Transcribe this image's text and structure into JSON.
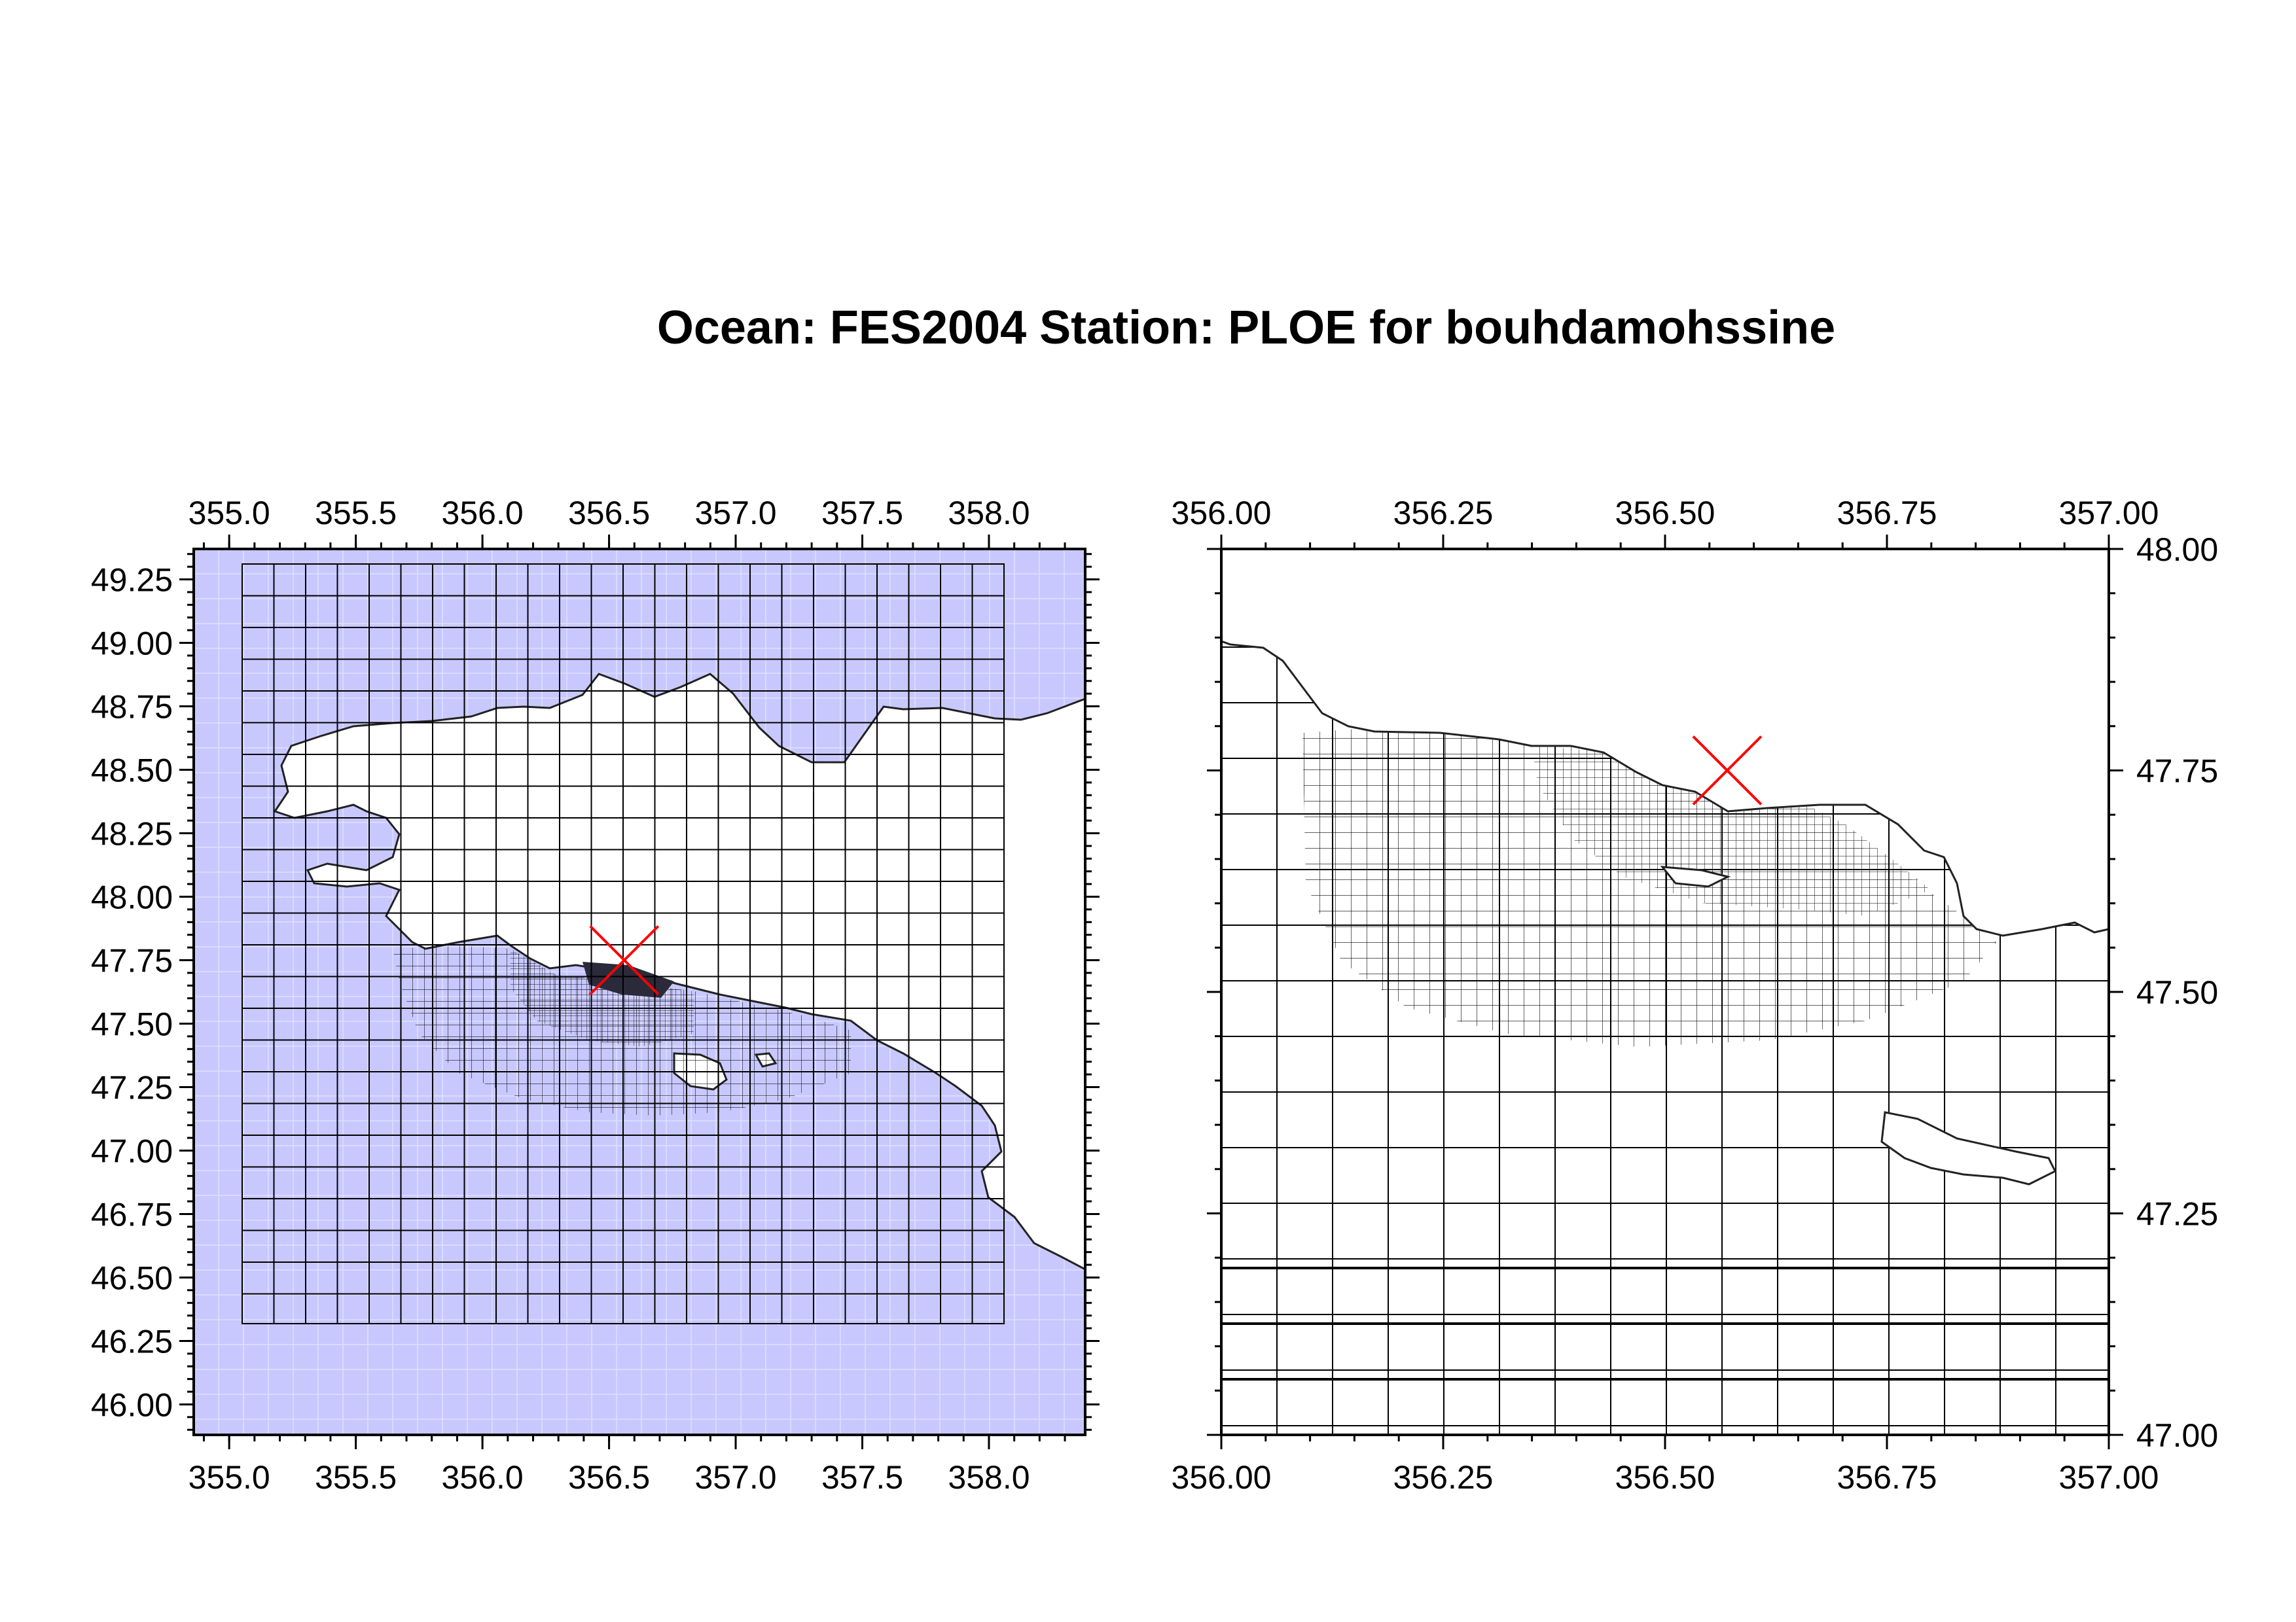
{
  "title": "Ocean: FES2004  Station: PLOE  for bouhdamohssine",
  "colors": {
    "ocean_fill": "#c8c8ff",
    "grid_line": "#000000",
    "station_marker": "#ff0000",
    "land": "#ffffff"
  },
  "left_map": {
    "lon_range": [
      354.86,
      358.38
    ],
    "lat_range": [
      45.88,
      49.37
    ],
    "lon_tick_labels": [
      "355.0",
      "355.5",
      "356.0",
      "356.5",
      "357.0",
      "357.5",
      "358.0"
    ],
    "lat_tick_labels": [
      "46.00",
      "46.25",
      "46.50",
      "46.75",
      "47.00",
      "47.25",
      "47.50",
      "47.75",
      "48.00",
      "48.25",
      "48.50",
      "48.75",
      "49.00",
      "49.25"
    ],
    "station": {
      "lon": 356.56,
      "lat": 47.75
    }
  },
  "right_map": {
    "lon_range": [
      356.0,
      357.0
    ],
    "lat_range": [
      47.0,
      48.0
    ],
    "lon_tick_labels": [
      "356.00",
      "356.25",
      "356.50",
      "356.75",
      "357.00"
    ],
    "lat_tick_labels": [
      "47.00",
      "47.25",
      "47.50",
      "47.75",
      "48.00"
    ],
    "station": {
      "lon": 356.57,
      "lat": 47.75
    }
  }
}
